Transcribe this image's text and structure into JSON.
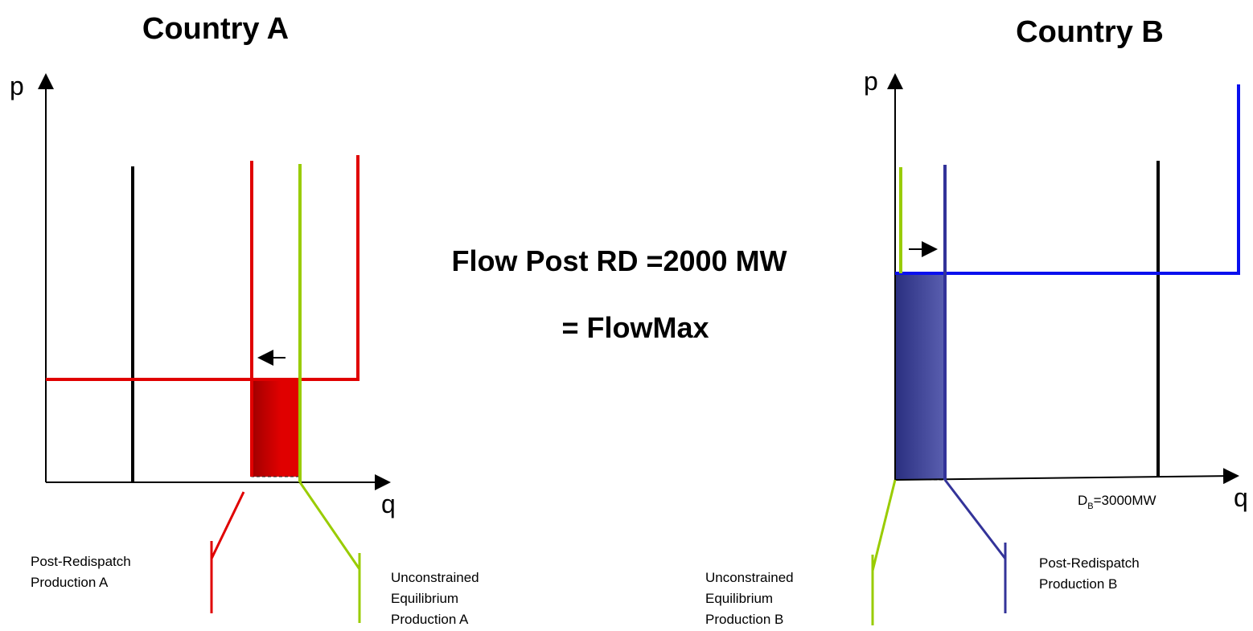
{
  "country_a": {
    "title": "Country A",
    "p_axis": "p",
    "q_axis": "q",
    "post_redispatch_label": [
      "Post-Redispatch",
      "Production A"
    ],
    "unconstrained_label": [
      "Unconstrained",
      "Equilibrium",
      "Production A"
    ]
  },
  "country_b": {
    "title": "Country B",
    "p_axis": "p",
    "q_axis": "q",
    "post_redispatch_label": [
      "Post-Redispatch",
      "Production B"
    ],
    "unconstrained_label": [
      "Unconstrained",
      "Equilibrium",
      "Production B"
    ],
    "demand_label": {
      "main": "D",
      "sub": "B",
      "rest": "=3000MW"
    }
  },
  "center": {
    "line1": "Flow Post RD =2000 MW",
    "line2": "= FlowMax"
  }
}
